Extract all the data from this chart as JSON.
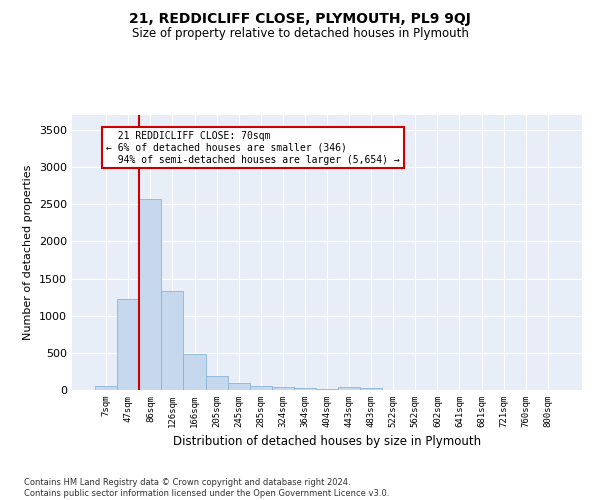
{
  "title": "21, REDDICLIFF CLOSE, PLYMOUTH, PL9 9QJ",
  "subtitle": "Size of property relative to detached houses in Plymouth",
  "xlabel": "Distribution of detached houses by size in Plymouth",
  "ylabel": "Number of detached properties",
  "bar_color": "#c5d8ee",
  "bar_edge_color": "#8ab4d8",
  "background_color": "#e8eef8",
  "grid_color": "#ffffff",
  "categories": [
    "7sqm",
    "47sqm",
    "86sqm",
    "126sqm",
    "166sqm",
    "205sqm",
    "245sqm",
    "285sqm",
    "324sqm",
    "364sqm",
    "404sqm",
    "443sqm",
    "483sqm",
    "522sqm",
    "562sqm",
    "602sqm",
    "641sqm",
    "681sqm",
    "721sqm",
    "760sqm",
    "800sqm"
  ],
  "values": [
    50,
    1220,
    2570,
    1330,
    490,
    190,
    100,
    50,
    40,
    30,
    20,
    40,
    30,
    0,
    0,
    0,
    0,
    0,
    0,
    0,
    0
  ],
  "ylim": [
    0,
    3700
  ],
  "yticks": [
    0,
    500,
    1000,
    1500,
    2000,
    2500,
    3000,
    3500
  ],
  "red_line_x": 1.5,
  "property_label": "21 REDDICLIFF CLOSE: 70sqm",
  "smaller_pct": "6%",
  "smaller_count": "346",
  "larger_pct": "94%",
  "larger_count": "5,654",
  "annotation_box_color": "#ffffff",
  "annotation_box_edge": "#cc0000",
  "red_line_color": "#cc0000",
  "footer_line1": "Contains HM Land Registry data © Crown copyright and database right 2024.",
  "footer_line2": "Contains public sector information licensed under the Open Government Licence v3.0."
}
